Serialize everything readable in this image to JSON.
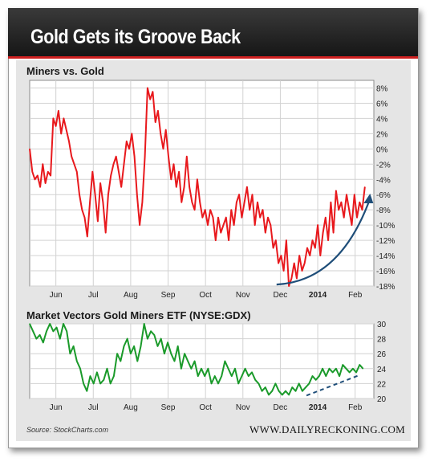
{
  "header": {
    "title": "Gold Gets its Groove Back"
  },
  "source": "Source: StockCharts.com",
  "brand": "WWW.DAILYRECKONING.COM",
  "colors": {
    "banner": "#1e1e1e",
    "accent_red": "#cc1f1f",
    "panel": "#e5e5e5",
    "line_red": "#e8191d",
    "line_green": "#1a9a2a",
    "arrow": "#1f4e79"
  },
  "chart_data": [
    {
      "type": "line",
      "title": "Miners vs. Gold",
      "xlabel": "",
      "ylabel": "",
      "ylim": [
        -18,
        9
      ],
      "y_ticks": [
        "8%",
        "6%",
        "4%",
        "2%",
        "0%",
        "-2%",
        "-4%",
        "-6%",
        "-8%",
        "-10%",
        "-12%",
        "-14%",
        "-16%",
        "-18%"
      ],
      "y_tick_values": [
        8,
        6,
        4,
        2,
        0,
        -2,
        -4,
        -6,
        -8,
        -10,
        -12,
        -14,
        -16,
        -18
      ],
      "x_ticks": [
        "Jun",
        "Jul",
        "Aug",
        "Sep",
        "Oct",
        "Nov",
        "Dec",
        "2014",
        "Feb"
      ],
      "x_tick_values": [
        0.5,
        1.5,
        2.5,
        3.5,
        4.5,
        5.5,
        6.5,
        7.5,
        8.5
      ],
      "xlim": [
        -0.2,
        9.0
      ],
      "grid": true,
      "annotation": "upward-arrow",
      "series": [
        {
          "color": "#e8191d",
          "x": [
            -0.2,
            -0.13,
            -0.06,
            0.01,
            0.08,
            0.15,
            0.22,
            0.29,
            0.36,
            0.43,
            0.5,
            0.57,
            0.64,
            0.71,
            0.78,
            0.85,
            0.92,
            0.99,
            1.06,
            1.13,
            1.2,
            1.27,
            1.34,
            1.41,
            1.48,
            1.55,
            1.62,
            1.69,
            1.76,
            1.83,
            1.9,
            1.97,
            2.04,
            2.11,
            2.18,
            2.25,
            2.32,
            2.39,
            2.46,
            2.53,
            2.6,
            2.67,
            2.74,
            2.81,
            2.88,
            2.95,
            3.02,
            3.09,
            3.16,
            3.23,
            3.3,
            3.37,
            3.44,
            3.51,
            3.58,
            3.65,
            3.72,
            3.79,
            3.86,
            3.93,
            4.0,
            4.07,
            4.14,
            4.21,
            4.28,
            4.35,
            4.42,
            4.49,
            4.56,
            4.63,
            4.7,
            4.77,
            4.84,
            4.91,
            4.98,
            5.05,
            5.12,
            5.19,
            5.26,
            5.33,
            5.4,
            5.47,
            5.54,
            5.61,
            5.68,
            5.75,
            5.82,
            5.89,
            5.96,
            6.03,
            6.1,
            6.17,
            6.24,
            6.31,
            6.38,
            6.45,
            6.52,
            6.59,
            6.66,
            6.73,
            6.8,
            6.87,
            6.94,
            7.01,
            7.08,
            7.15,
            7.22,
            7.29,
            7.36,
            7.43,
            7.5,
            7.57,
            7.64,
            7.71,
            7.78,
            7.85,
            7.92,
            7.99,
            8.06,
            8.13,
            8.2,
            8.27,
            8.34,
            8.41,
            8.48,
            8.55,
            8.62,
            8.69,
            8.76
          ],
          "y": [
            0,
            -3,
            -4,
            -3.5,
            -5,
            -2,
            -4.5,
            -3,
            -3.5,
            4,
            3,
            5,
            2,
            4,
            2.5,
            1,
            -1,
            -2,
            -3,
            -6,
            -8,
            -9,
            -11.5,
            -7,
            -3,
            -6,
            -9.5,
            -4.5,
            -7,
            -11,
            -6,
            -3.5,
            -2,
            -1,
            -3,
            -5,
            -2,
            1,
            0,
            2,
            -1,
            -6,
            -10,
            -7,
            -1,
            8,
            6.5,
            7.5,
            3.5,
            5,
            2,
            0,
            2.5,
            -1,
            -4,
            -2,
            -5,
            -3,
            -7,
            -5,
            -1,
            -5,
            -7,
            -8,
            -4,
            -7,
            -9,
            -8,
            -10,
            -8,
            -9,
            -12,
            -9,
            -11,
            -10,
            -9,
            -12,
            -8,
            -10,
            -7,
            -6,
            -9,
            -7,
            -5,
            -8,
            -6,
            -10,
            -7,
            -9,
            -8,
            -11,
            -9,
            -10,
            -13,
            -12,
            -15,
            -14,
            -16,
            -12,
            -18,
            -17,
            -15,
            -17,
            -14,
            -16,
            -15,
            -13,
            -14,
            -12,
            -13,
            -10,
            -14,
            -11,
            -9,
            -12,
            -7,
            -11,
            -5.5,
            -8,
            -7,
            -9,
            -6,
            -8,
            -10,
            -6,
            -9,
            -7,
            -8,
            -5
          ]
        }
      ],
      "arrow": {
        "from": [
          6.4,
          -17.8
        ],
        "to": [
          8.9,
          -6.5
        ]
      }
    },
    {
      "type": "line",
      "title": "Market Vectors Gold Miners ETF (NYSE:GDX)",
      "xlabel": "",
      "ylabel": "",
      "ylim": [
        20,
        30
      ],
      "y_ticks": [
        "30",
        "28",
        "26",
        "24",
        "22",
        "20"
      ],
      "y_tick_values": [
        30,
        28,
        26,
        24,
        22,
        20
      ],
      "x_ticks": [
        "Jun",
        "Jul",
        "Aug",
        "Sep",
        "Oct",
        "Nov",
        "Dec",
        "2014",
        "Feb"
      ],
      "x_tick_values": [
        0.5,
        1.5,
        2.5,
        3.5,
        4.5,
        5.5,
        6.5,
        7.5,
        8.5
      ],
      "xlim": [
        -0.2,
        9.0
      ],
      "grid": true,
      "annotation": "dashed-trendline",
      "series": [
        {
          "color": "#1a9a2a",
          "x": [
            -0.2,
            -0.11,
            -0.02,
            0.07,
            0.16,
            0.25,
            0.34,
            0.43,
            0.52,
            0.61,
            0.7,
            0.79,
            0.88,
            0.97,
            1.06,
            1.15,
            1.24,
            1.33,
            1.42,
            1.51,
            1.6,
            1.69,
            1.78,
            1.87,
            1.96,
            2.05,
            2.14,
            2.23,
            2.32,
            2.41,
            2.5,
            2.59,
            2.68,
            2.77,
            2.86,
            2.95,
            3.04,
            3.13,
            3.22,
            3.31,
            3.4,
            3.49,
            3.58,
            3.67,
            3.76,
            3.85,
            3.94,
            4.03,
            4.12,
            4.21,
            4.3,
            4.39,
            4.48,
            4.57,
            4.66,
            4.75,
            4.84,
            4.93,
            5.02,
            5.11,
            5.2,
            5.29,
            5.38,
            5.47,
            5.56,
            5.65,
            5.74,
            5.83,
            5.92,
            6.01,
            6.1,
            6.19,
            6.28,
            6.37,
            6.46,
            6.55,
            6.64,
            6.73,
            6.82,
            6.91,
            7.0,
            7.09,
            7.18,
            7.27,
            7.36,
            7.45,
            7.54,
            7.63,
            7.72,
            7.81,
            7.9,
            7.99,
            8.08,
            8.17,
            8.26,
            8.35,
            8.44,
            8.53,
            8.62,
            8.71
          ],
          "y": [
            30,
            29,
            28,
            28.5,
            27.5,
            29,
            30,
            29,
            29.5,
            28,
            30,
            29,
            26,
            27,
            25,
            24,
            22,
            21,
            23,
            22,
            23.5,
            22,
            22.5,
            24,
            22,
            23,
            26,
            25,
            27,
            28,
            26,
            27,
            25,
            27,
            30,
            28,
            29,
            28.5,
            27,
            28,
            26,
            27.5,
            26,
            25,
            27,
            24,
            26,
            25,
            24,
            25,
            23,
            24,
            23,
            24,
            22,
            23,
            22,
            23,
            25,
            24,
            23,
            24,
            22,
            23,
            24,
            23,
            23.5,
            22.5,
            22,
            21,
            21.5,
            20.5,
            21,
            22,
            21,
            20.5,
            21,
            20.5,
            21.5,
            21,
            22,
            21,
            21.5,
            22,
            23,
            22.5,
            23,
            24,
            23,
            24,
            23.5,
            24,
            23,
            24.5,
            24,
            23.5,
            24,
            23.5,
            24.5,
            24
          ]
        }
      ],
      "trendline": {
        "from": [
          7.2,
          20.4
        ],
        "to": [
          8.6,
          23.1
        ]
      }
    }
  ]
}
